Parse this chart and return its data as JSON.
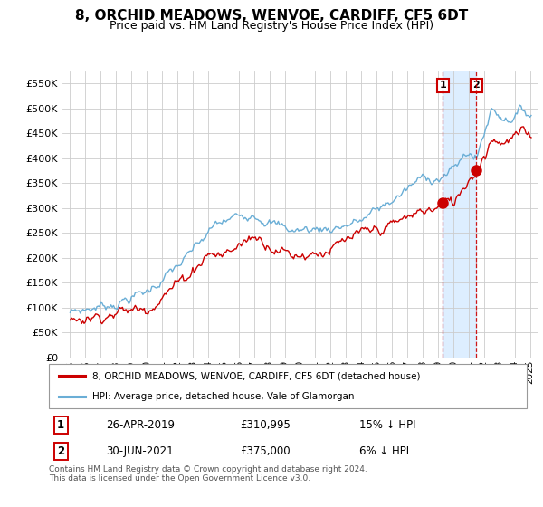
{
  "title": "8, ORCHID MEADOWS, WENVOE, CARDIFF, CF5 6DT",
  "subtitle": "Price paid vs. HM Land Registry's House Price Index (HPI)",
  "legend_line1": "8, ORCHID MEADOWS, WENVOE, CARDIFF, CF5 6DT (detached house)",
  "legend_line2": "HPI: Average price, detached house, Vale of Glamorgan",
  "footnote": "Contains HM Land Registry data © Crown copyright and database right 2024.\nThis data is licensed under the Open Government Licence v3.0.",
  "sale1_label": "1",
  "sale1_date": "26-APR-2019",
  "sale1_price": "£310,995",
  "sale1_hpi": "15% ↓ HPI",
  "sale2_label": "2",
  "sale2_date": "30-JUN-2021",
  "sale2_price": "£375,000",
  "sale2_hpi": "6% ↓ HPI",
  "sale1_year": 2019.32,
  "sale1_value": 310995,
  "sale2_year": 2021.5,
  "sale2_value": 375000,
  "ylim_min": 0,
  "ylim_max": 575000,
  "xlim_min": 1994.5,
  "xlim_max": 2025.5,
  "hpi_color": "#6aaed6",
  "price_color": "#cc0000",
  "shade_color": "#ddeeff",
  "grid_color": "#cccccc",
  "background_color": "#ffffff",
  "title_fontsize": 11,
  "subtitle_fontsize": 9
}
